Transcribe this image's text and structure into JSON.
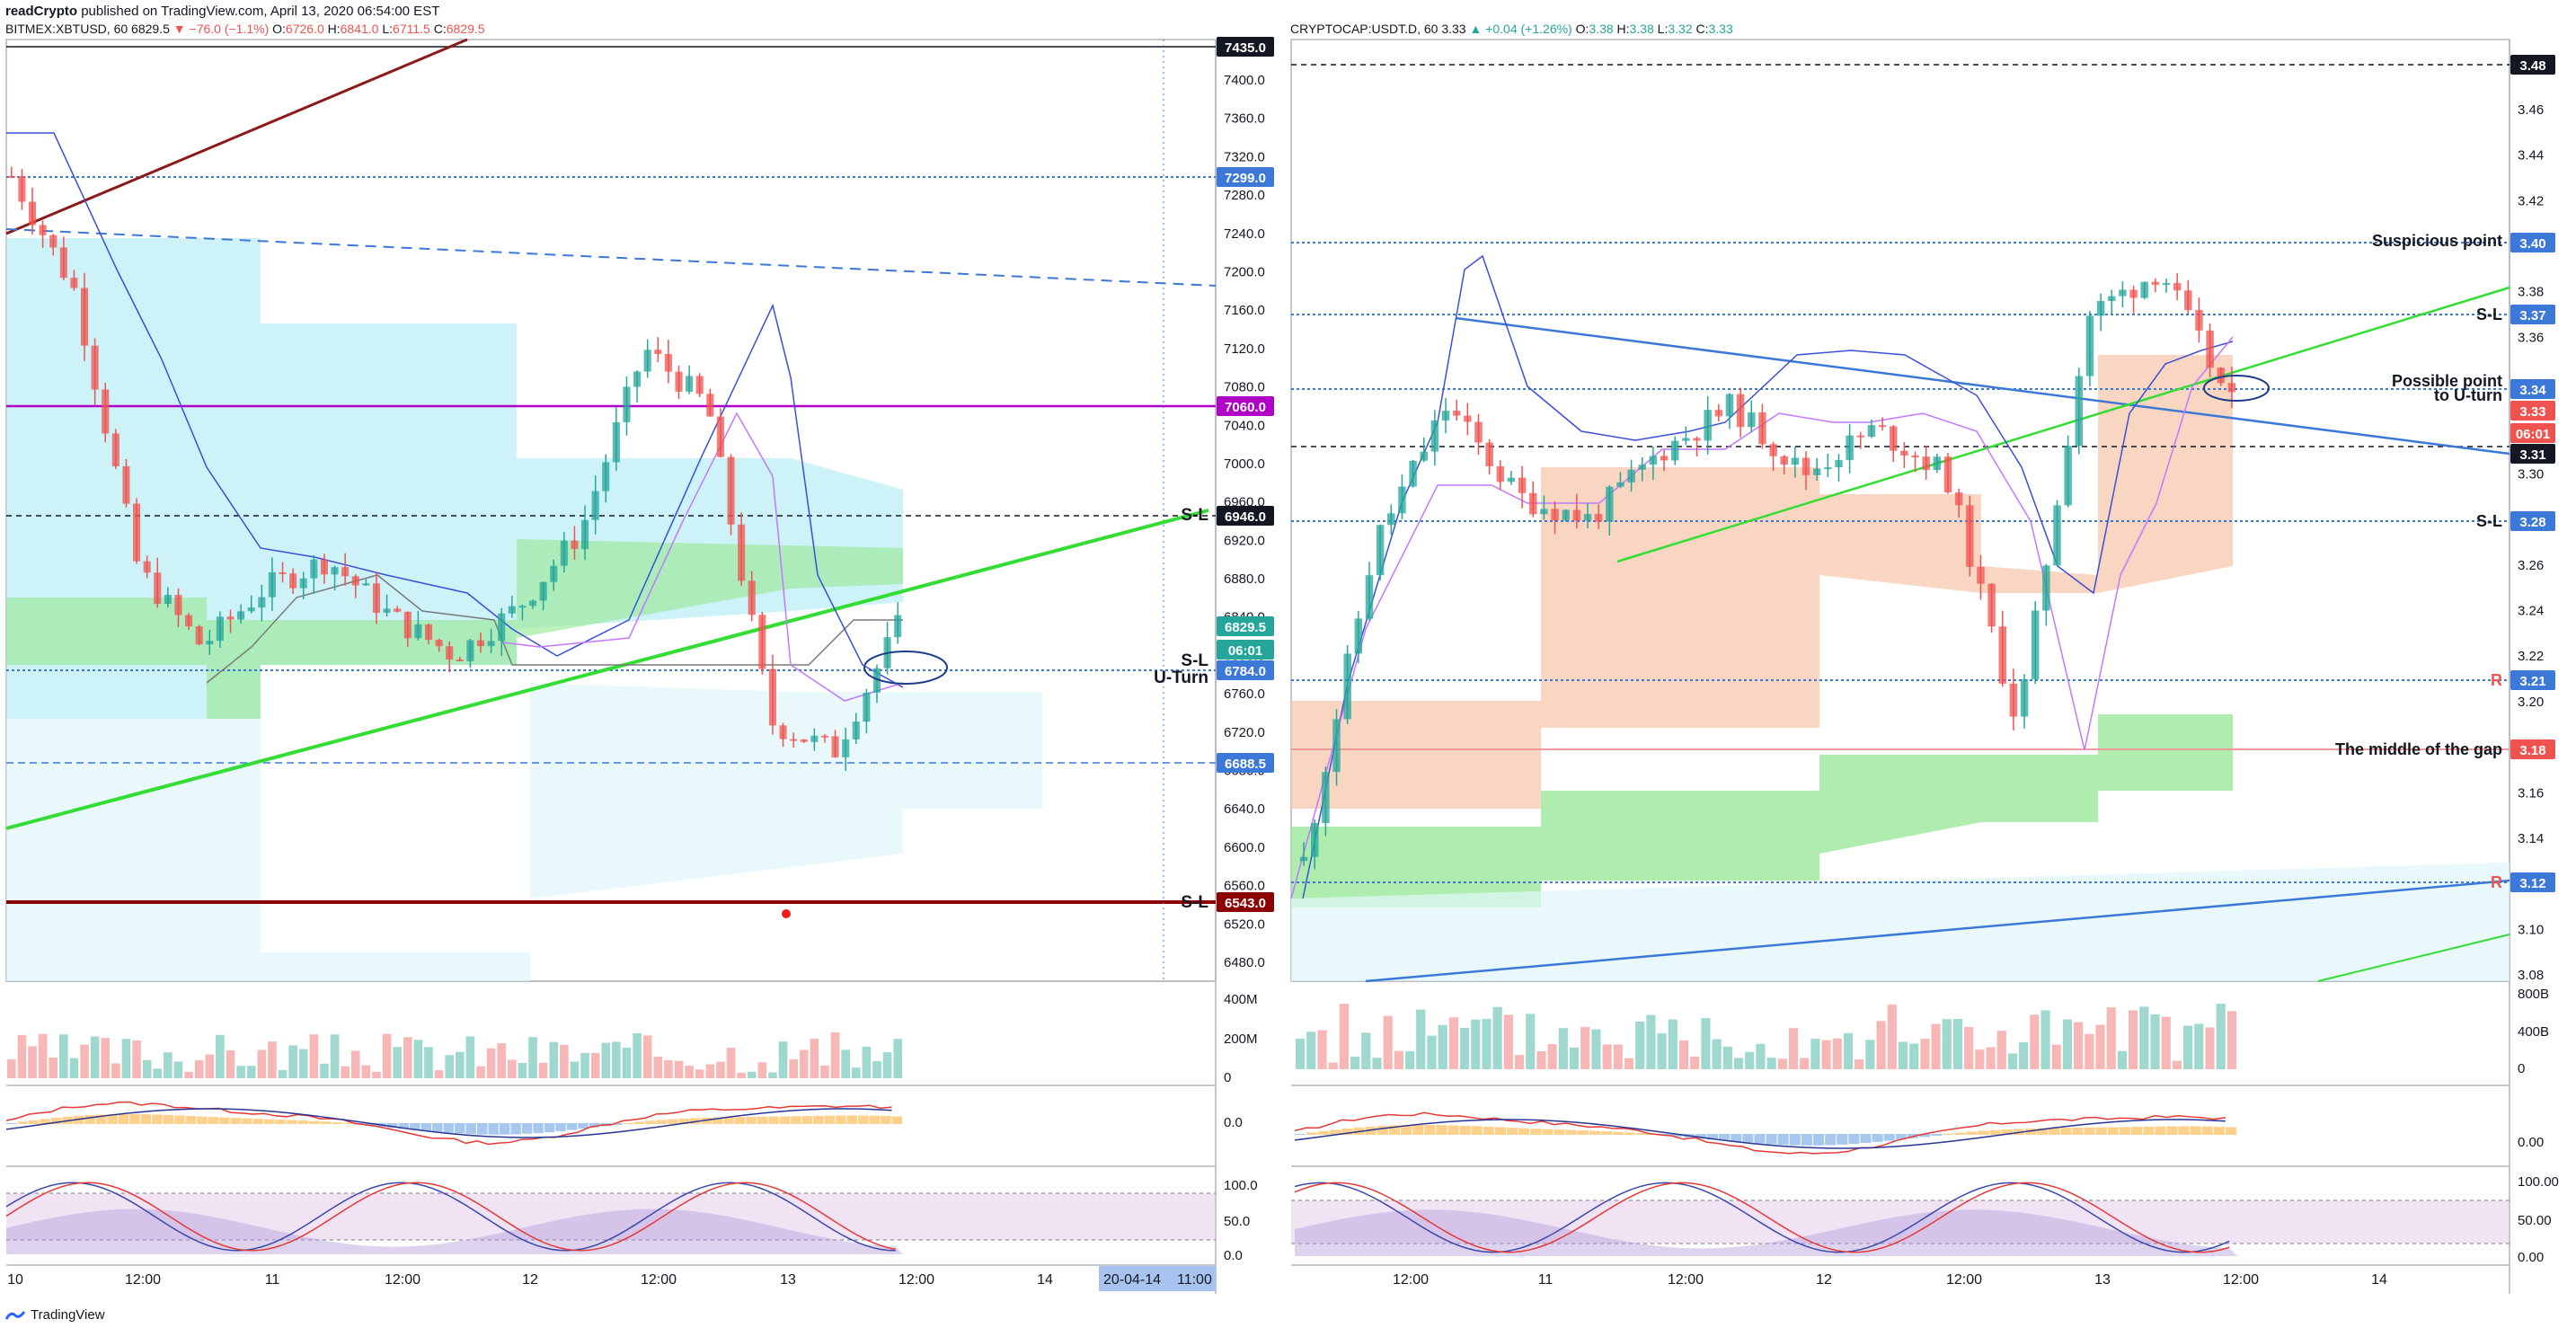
{
  "header": {
    "author": "readCrypto",
    "published": "published on TradingView.com, April 13, 2020 06:54:00 EST"
  },
  "footer": {
    "brand": "TradingView"
  },
  "colors": {
    "up": "#26a69a",
    "down": "#ef5350",
    "green_line": "#33dd33",
    "blue_line": "#3b78d8",
    "dark_red": "#8b0000",
    "purple": "#b000c8",
    "cloud_blue": "#b2ebf2",
    "cloud_green": "#9ae89a",
    "cloud_orange": "#f7c8ad"
  },
  "panels": [
    {
      "symbol": "BITMEX:XBTUSD, 60",
      "last": "6829.5",
      "change": "−76.0 (−1.1%)",
      "ohlc": {
        "o_label": "O:",
        "o": "6726.0",
        "h_label": "H:",
        "h": "6841.0",
        "l_label": "L:",
        "l": "6711.5",
        "c_label": "C:",
        "c": "6829.5"
      },
      "price_axis": [
        "7400.0",
        "7360.0",
        "7320.0",
        "7280.0",
        "7240.0",
        "7200.0",
        "7160.0",
        "7120.0",
        "7080.0",
        "7040.0",
        "7000.0",
        "6960.0",
        "6920.0",
        "6880.0",
        "6840.0",
        "6800.0",
        "6760.0",
        "6720.0",
        "6680.0",
        "6640.0",
        "6600.0",
        "6560.0",
        "6520.0",
        "6480.0"
      ],
      "time_axis": [
        "10",
        "12:00",
        "11",
        "12:00",
        "12",
        "12:00",
        "13",
        "12:00",
        "14"
      ],
      "crosshair_time": "20-04-14",
      "crosshair_clock": "11:00",
      "badges": [
        {
          "text": "7435.0",
          "bg": "#131722",
          "fg": "#ffffff"
        },
        {
          "text": "7299.0",
          "bg": "#3b78d8",
          "fg": "#ffffff"
        },
        {
          "text": "7060.0",
          "bg": "#b000c8",
          "fg": "#ffffff"
        },
        {
          "text": "6946.0",
          "bg": "#131722",
          "fg": "#ffffff"
        },
        {
          "text": "6829.5",
          "bg": "#26a69a",
          "fg": "#ffffff"
        },
        {
          "text": "06:01",
          "bg": "#26a69a",
          "fg": "#ffffff"
        },
        {
          "text": "6784.0",
          "bg": "#3b78d8",
          "fg": "#ffffff"
        },
        {
          "text": "6688.5",
          "bg": "#3b78d8",
          "fg": "#ffffff"
        },
        {
          "text": "6543.0",
          "bg": "#8b0000",
          "fg": "#ffffff"
        }
      ],
      "annotations": [
        "S-L",
        "S-L",
        "U-Turn",
        "S-L"
      ],
      "volume_axis": [
        "400M",
        "200M",
        "0"
      ],
      "macd_axis": [
        "0.0"
      ],
      "stoch_axis": [
        "100.0",
        "50.0",
        "0.0"
      ]
    },
    {
      "symbol": "CRYPTOCAP:USDT.D, 60",
      "last": "3.33",
      "change": "+0.04 (+1.26%)",
      "ohlc": {
        "o_label": "O:",
        "o": "3.38",
        "h_label": "H:",
        "h": "3.38",
        "l_label": "L:",
        "l": "3.32",
        "c_label": "C:",
        "c": "3.33"
      },
      "price_axis": [
        "3.46",
        "3.44",
        "3.42",
        "3.38",
        "3.36",
        "3.30",
        "3.26",
        "3.24",
        "3.22",
        "3.20",
        "3.16",
        "3.14",
        "3.10",
        "3.08"
      ],
      "time_axis": [
        "12:00",
        "11",
        "12:00",
        "12",
        "12:00",
        "13",
        "12:00",
        "14"
      ],
      "badges": [
        {
          "text": "3.48",
          "bg": "#131722",
          "fg": "#ffffff"
        },
        {
          "text": "3.40",
          "bg": "#3b78d8",
          "fg": "#ffffff"
        },
        {
          "text": "3.37",
          "bg": "#3b78d8",
          "fg": "#ffffff"
        },
        {
          "text": "3.34",
          "bg": "#3b78d8",
          "fg": "#ffffff"
        },
        {
          "text": "3.33",
          "bg": "#ef5350",
          "fg": "#ffffff"
        },
        {
          "text": "06:01",
          "bg": "#ef5350",
          "fg": "#ffffff"
        },
        {
          "text": "3.31",
          "bg": "#131722",
          "fg": "#ffffff"
        },
        {
          "text": "3.28",
          "bg": "#3b78d8",
          "fg": "#ffffff"
        },
        {
          "text": "3.21",
          "bg": "#3b78d8",
          "fg": "#ffffff"
        },
        {
          "text": "3.18",
          "bg": "#ef5350",
          "fg": "#ffffff"
        },
        {
          "text": "3.12",
          "bg": "#3b78d8",
          "fg": "#ffffff"
        }
      ],
      "annotations": [
        "Suspicious point",
        "S-L",
        "Possible point",
        "to U-turn",
        "S-L",
        "R",
        "The middle of the gap",
        "R"
      ],
      "volume_axis": [
        "800B",
        "400B",
        "0"
      ],
      "macd_axis": [
        "0.00"
      ],
      "stoch_axis": [
        "100.00",
        "50.00",
        "0.00"
      ]
    }
  ],
  "chart_data": [
    {
      "type": "line",
      "title": "BITMEX:XBTUSD, 60",
      "x": [
        "Apr 10 00:00",
        "Apr 10 06:00",
        "Apr 10 12:00",
        "Apr 10 18:00",
        "Apr 11 00:00",
        "Apr 11 06:00",
        "Apr 11 12:00",
        "Apr 11 18:00",
        "Apr 12 00:00",
        "Apr 12 06:00",
        "Apr 12 12:00",
        "Apr 12 18:00",
        "Apr 13 00:00",
        "Apr 13 06:00",
        "Apr 13 11:00"
      ],
      "series": [
        {
          "name": "XBTUSD close",
          "values": [
            7300,
            7180,
            6890,
            6810,
            6870,
            6900,
            6840,
            6800,
            6850,
            6930,
            7120,
            7060,
            6730,
            6700,
            6829.5
          ]
        }
      ],
      "ylim": [
        6460,
        7440
      ],
      "levels": [
        7435.0,
        7299.0,
        7060.0,
        6946.0,
        6784.0,
        6688.5,
        6543.0
      ]
    },
    {
      "type": "line",
      "title": "CRYPTOCAP:USDT.D, 60",
      "x": [
        "Apr 10 06:00",
        "Apr 10 12:00",
        "Apr 10 18:00",
        "Apr 11 00:00",
        "Apr 11 06:00",
        "Apr 11 12:00",
        "Apr 11 18:00",
        "Apr 12 00:00",
        "Apr 12 06:00",
        "Apr 12 12:00",
        "Apr 12 18:00",
        "Apr 13 00:00",
        "Apr 13 06:00",
        "Apr 13 11:00"
      ],
      "series": [
        {
          "name": "USDT.D close",
          "values": [
            3.13,
            3.27,
            3.33,
            3.29,
            3.28,
            3.31,
            3.33,
            3.3,
            3.32,
            3.3,
            3.19,
            3.37,
            3.39,
            3.33
          ]
        }
      ],
      "ylim": [
        3.07,
        3.49
      ],
      "levels": [
        3.48,
        3.4,
        3.37,
        3.34,
        3.31,
        3.28,
        3.21,
        3.18,
        3.12
      ]
    }
  ]
}
